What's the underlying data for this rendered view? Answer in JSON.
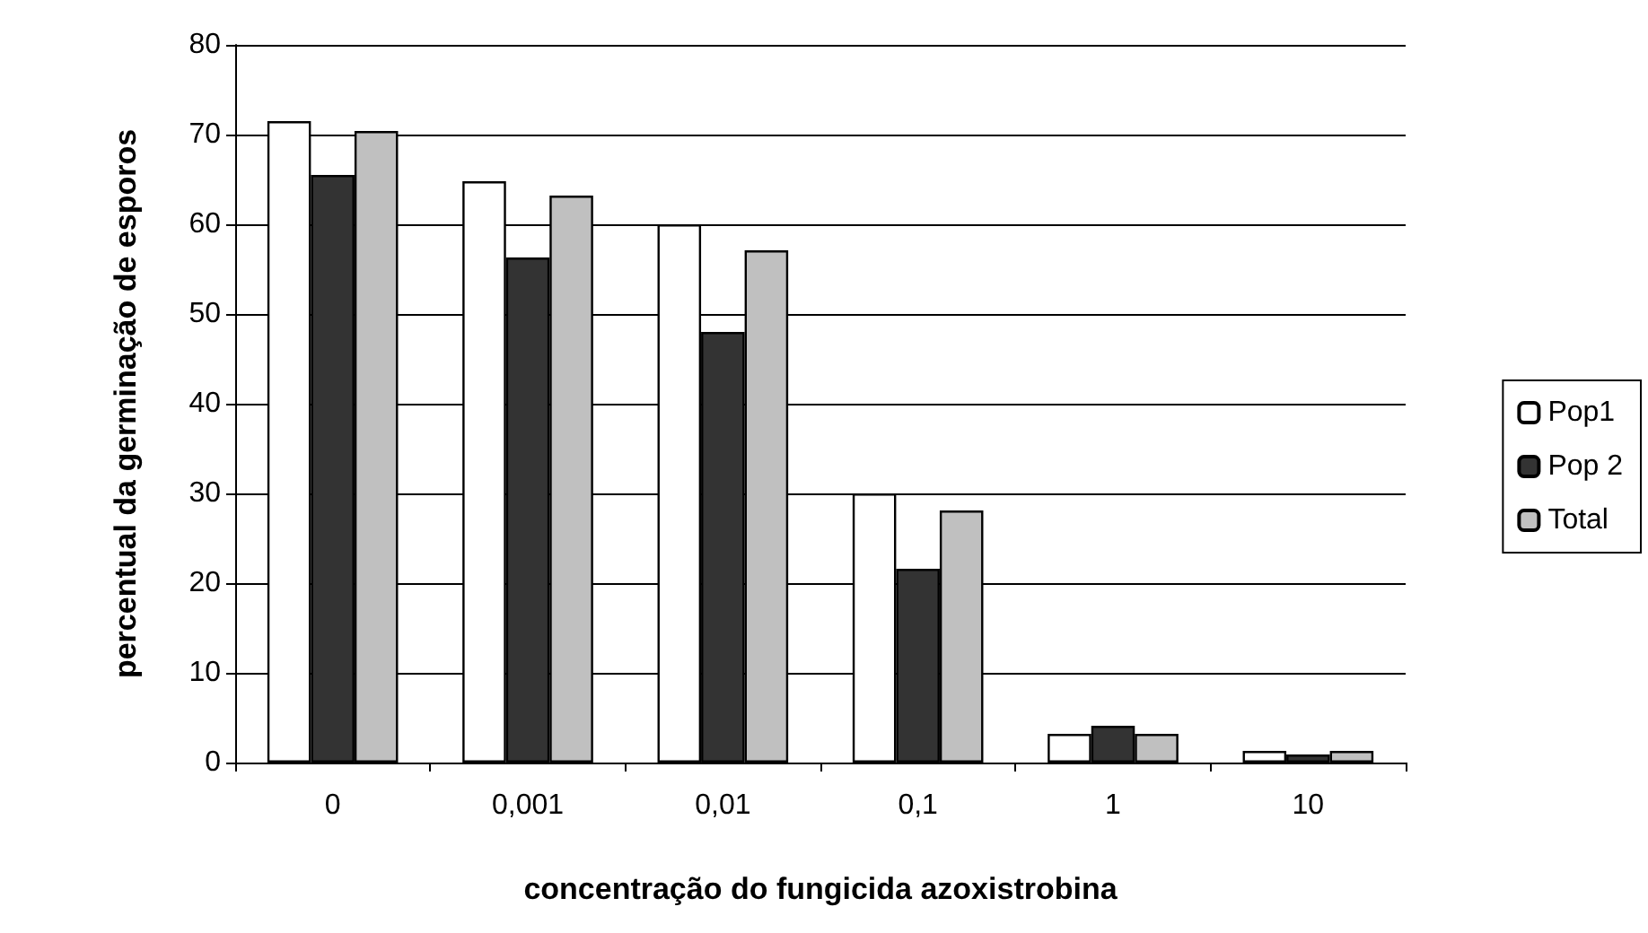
{
  "chart_data": {
    "type": "bar",
    "xlabel": "concentração do fungicida azoxistrobina",
    "ylabel": "percentual da germinação de esporos",
    "categories": [
      "0",
      "0,001",
      "0,01",
      "0,1",
      "1",
      "10"
    ],
    "series": [
      {
        "name": "Pop1",
        "color": "#ffffff",
        "values": [
          71.5,
          64.8,
          60,
          30,
          3.2,
          1.3
        ]
      },
      {
        "name": "Pop 2",
        "color": "#333333",
        "values": [
          65.5,
          56.3,
          48,
          21.6,
          4.1,
          0.9
        ]
      },
      {
        "name": "Total",
        "color": "#c0c0c0",
        "values": [
          70.4,
          63.2,
          57.1,
          28.1,
          3.2,
          1.3
        ]
      }
    ],
    "ylim": [
      0,
      80
    ],
    "yticks": [
      0,
      10,
      20,
      30,
      40,
      50,
      60,
      70,
      80
    ],
    "grid": "y",
    "legend": "right"
  }
}
